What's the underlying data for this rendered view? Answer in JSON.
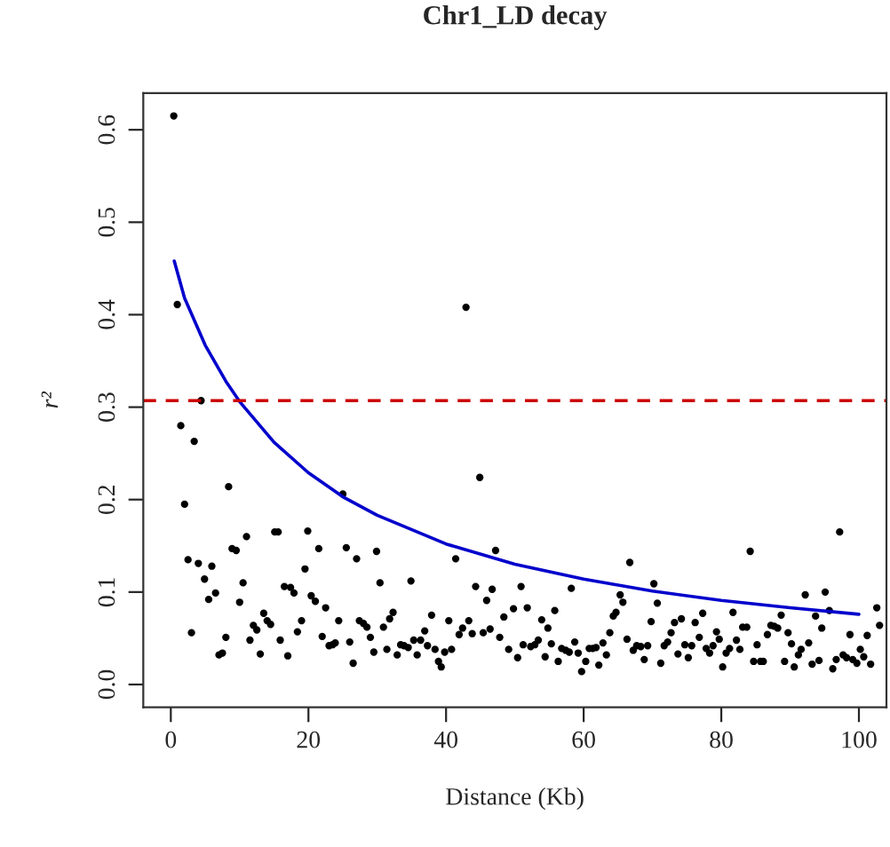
{
  "chart_data": {
    "type": "scatter",
    "title": "Chr1_LD decay",
    "xlabel": "Distance (Kb)",
    "ylabel": "r²",
    "xlim": [
      -4,
      104
    ],
    "ylim": [
      -0.0246,
      0.6396
    ],
    "xticks": [
      0,
      20,
      40,
      60,
      80,
      100
    ],
    "yticks": [
      {
        "value": 0,
        "label": "0.0"
      },
      0.1,
      0.2,
      0.3,
      0.4,
      0.5,
      0.6
    ],
    "grid": false,
    "legend": false,
    "ref_lines": [
      {
        "axis": "y",
        "value": 0.307,
        "color": "#cc0000",
        "line_style": "dashed"
      }
    ],
    "series": [
      {
        "color": "#000000",
        "marker": "circle",
        "x": [
          0.43,
          0.94,
          42.9,
          4.4,
          1.45,
          3.4,
          2.0,
          8.4,
          2.5,
          4.0,
          5.96,
          4.9,
          3.0,
          6.5,
          5.5,
          8.9,
          9.5,
          11.0,
          10.5,
          10.0,
          8.0,
          7.0,
          7.5,
          11.5,
          12.0,
          12.5,
          13.0,
          13.5,
          14.0,
          14.5,
          15.1,
          15.6,
          15.9,
          16.5,
          17.0,
          17.4,
          17.9,
          18.4,
          19.0,
          19.5,
          19.9,
          20.4,
          21.0,
          21.5,
          22.0,
          22.5,
          23.0,
          23.5,
          23.9,
          24.4,
          25.0,
          25.5,
          26.0,
          26.5,
          27.0,
          27.4,
          28.0,
          28.5,
          29.0,
          29.5,
          29.9,
          30.4,
          30.9,
          31.4,
          31.8,
          32.3,
          32.9,
          33.4,
          33.9,
          34.5,
          34.9,
          35.3,
          35.8,
          36.3,
          36.9,
          37.3,
          37.9,
          38.4,
          38.9,
          39.3,
          39.8,
          40.4,
          40.8,
          41.4,
          41.9,
          42.4,
          43.3,
          43.8,
          44.3,
          44.9,
          45.4,
          45.9,
          46.4,
          46.7,
          47.2,
          47.8,
          48.4,
          49.1,
          49.8,
          50.4,
          50.9,
          51.2,
          51.8,
          52.3,
          52.9,
          53.4,
          53.9,
          54.4,
          54.8,
          55.3,
          55.8,
          56.3,
          56.8,
          57.4,
          57.9,
          58.2,
          58.7,
          59.2,
          59.7,
          60.3,
          60.8,
          61.3,
          61.8,
          62.2,
          62.8,
          63.3,
          63.8,
          64.3,
          64.7,
          65.3,
          65.7,
          66.3,
          66.7,
          67.2,
          67.7,
          68.3,
          68.8,
          69.3,
          69.8,
          70.2,
          70.7,
          71.2,
          71.7,
          72.2,
          72.7,
          73.2,
          73.7,
          74.2,
          74.7,
          75.2,
          75.7,
          76.2,
          76.8,
          77.3,
          77.8,
          78.3,
          78.8,
          79.3,
          79.7,
          80.2,
          80.7,
          81.2,
          81.7,
          82.2,
          82.7,
          83.1,
          83.7,
          84.2,
          84.7,
          85.2,
          85.7,
          86.1,
          86.7,
          87.2,
          87.7,
          88.2,
          88.7,
          89.2,
          89.7,
          90.2,
          90.6,
          91.2,
          91.6,
          92.2,
          92.7,
          93.2,
          93.7,
          94.2,
          94.6,
          95.1,
          95.7,
          96.2,
          96.7,
          97.2,
          97.7,
          98.2,
          98.7,
          99.1,
          99.7,
          100.2,
          100.7,
          101.2,
          101.7,
          102.6,
          103.0
        ],
        "values": [
          0.615,
          0.411,
          0.408,
          0.307,
          0.28,
          0.263,
          0.195,
          0.214,
          0.135,
          0.131,
          0.128,
          0.114,
          0.056,
          0.099,
          0.092,
          0.147,
          0.145,
          0.16,
          0.11,
          0.089,
          0.051,
          0.032,
          0.034,
          0.048,
          0.064,
          0.059,
          0.033,
          0.077,
          0.069,
          0.065,
          0.165,
          0.165,
          0.048,
          0.106,
          0.031,
          0.105,
          0.099,
          0.057,
          0.069,
          0.125,
          0.166,
          0.096,
          0.09,
          0.147,
          0.052,
          0.083,
          0.042,
          0.043,
          0.045,
          0.069,
          0.206,
          0.148,
          0.046,
          0.023,
          0.136,
          0.069,
          0.066,
          0.062,
          0.051,
          0.035,
          0.144,
          0.11,
          0.062,
          0.038,
          0.071,
          0.078,
          0.032,
          0.043,
          0.042,
          0.04,
          0.112,
          0.048,
          0.032,
          0.048,
          0.058,
          0.042,
          0.075,
          0.038,
          0.025,
          0.019,
          0.035,
          0.069,
          0.038,
          0.136,
          0.054,
          0.061,
          0.069,
          0.055,
          0.106,
          0.224,
          0.056,
          0.091,
          0.06,
          0.103,
          0.145,
          0.051,
          0.073,
          0.038,
          0.082,
          0.029,
          0.106,
          0.043,
          0.083,
          0.041,
          0.043,
          0.048,
          0.07,
          0.03,
          0.061,
          0.044,
          0.08,
          0.025,
          0.039,
          0.037,
          0.035,
          0.104,
          0.046,
          0.034,
          0.014,
          0.025,
          0.039,
          0.039,
          0.04,
          0.021,
          0.045,
          0.032,
          0.056,
          0.074,
          0.078,
          0.097,
          0.089,
          0.049,
          0.132,
          0.037,
          0.042,
          0.041,
          0.027,
          0.042,
          0.068,
          0.109,
          0.088,
          0.023,
          0.042,
          0.046,
          0.056,
          0.067,
          0.033,
          0.071,
          0.043,
          0.029,
          0.042,
          0.067,
          0.051,
          0.077,
          0.039,
          0.034,
          0.042,
          0.057,
          0.049,
          0.019,
          0.034,
          0.039,
          0.078,
          0.048,
          0.038,
          0.062,
          0.062,
          0.144,
          0.025,
          0.043,
          0.025,
          0.025,
          0.054,
          0.064,
          0.063,
          0.061,
          0.075,
          0.025,
          0.056,
          0.044,
          0.019,
          0.032,
          0.038,
          0.097,
          0.045,
          0.022,
          0.074,
          0.026,
          0.061,
          0.1,
          0.08,
          0.017,
          0.027,
          0.165,
          0.032,
          0.029,
          0.054,
          0.027,
          0.023,
          0.038,
          0.03,
          0.053,
          0.022,
          0.083,
          0.064
        ]
      },
      {
        "type": "line",
        "color": "#0000cc",
        "line_style": "solid",
        "x": [
          0.5,
          2,
          5,
          8,
          10,
          15,
          20,
          25,
          30,
          40,
          50,
          60,
          70,
          80,
          90,
          100
        ],
        "values": [
          0.458,
          0.418,
          0.367,
          0.328,
          0.306,
          0.262,
          0.229,
          0.203,
          0.183,
          0.152,
          0.13,
          0.114,
          0.101,
          0.091,
          0.083,
          0.076
        ]
      }
    ]
  }
}
